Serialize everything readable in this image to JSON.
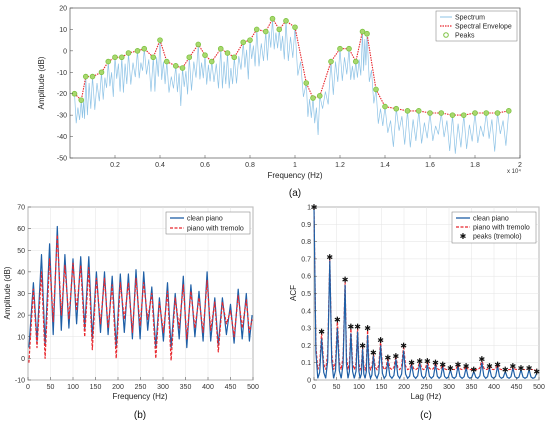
{
  "chart_data": [
    {
      "id": "a",
      "type": "line",
      "caption": "(a)",
      "xlabel": "Frequency (Hz)",
      "ylabel": "Amplitude (dB)",
      "x_exponent_label": "x 10⁴",
      "xlim": [
        0,
        2
      ],
      "ylim": [
        -50,
        20
      ],
      "xticks": [
        0.2,
        0.4,
        0.6,
        0.8,
        1,
        1.2,
        1.4,
        1.6,
        1.8,
        2
      ],
      "yticks": [
        -50,
        -40,
        -30,
        -20,
        -10,
        0,
        10,
        20
      ],
      "grid": false,
      "legend_position": "top-right",
      "legend": [
        "Spectrum",
        "Spectral Envelope",
        "Peaks"
      ],
      "colors": {
        "spectrum": "#8ec3e6",
        "envelope": "#e8262d",
        "peaks": "#7dc242"
      },
      "peaks": [
        [
          0.02,
          -20
        ],
        [
          0.05,
          -23
        ],
        [
          0.07,
          -12
        ],
        [
          0.1,
          -12
        ],
        [
          0.14,
          -10
        ],
        [
          0.17,
          -5
        ],
        [
          0.2,
          -3
        ],
        [
          0.23,
          -3
        ],
        [
          0.26,
          -1
        ],
        [
          0.3,
          0
        ],
        [
          0.33,
          1
        ],
        [
          0.37,
          -3
        ],
        [
          0.4,
          5
        ],
        [
          0.43,
          -5
        ],
        [
          0.47,
          -7
        ],
        [
          0.5,
          -8
        ],
        [
          0.53,
          -3
        ],
        [
          0.57,
          3
        ],
        [
          0.6,
          -2
        ],
        [
          0.63,
          -5
        ],
        [
          0.67,
          1
        ],
        [
          0.7,
          -1
        ],
        [
          0.73,
          -3
        ],
        [
          0.77,
          4
        ],
        [
          0.8,
          5
        ],
        [
          0.83,
          10
        ],
        [
          0.87,
          9
        ],
        [
          0.9,
          15
        ],
        [
          0.93,
          10
        ],
        [
          0.96,
          14
        ],
        [
          1.0,
          11
        ],
        [
          1.05,
          -15
        ],
        [
          1.08,
          -22
        ],
        [
          1.11,
          -21
        ],
        [
          1.16,
          -5
        ],
        [
          1.2,
          1
        ],
        [
          1.24,
          1
        ],
        [
          1.27,
          -5
        ],
        [
          1.3,
          9
        ],
        [
          1.32,
          8
        ],
        [
          1.36,
          -18
        ],
        [
          1.4,
          -26
        ],
        [
          1.45,
          -27
        ],
        [
          1.5,
          -28
        ],
        [
          1.55,
          -28
        ],
        [
          1.6,
          -29
        ],
        [
          1.65,
          -29
        ],
        [
          1.7,
          -30
        ],
        [
          1.75,
          -30
        ],
        [
          1.8,
          -29
        ],
        [
          1.85,
          -29
        ],
        [
          1.9,
          -29
        ],
        [
          1.95,
          -28
        ]
      ]
    },
    {
      "id": "b",
      "type": "line",
      "caption": "(b)",
      "xlabel": "Frequency (Hz)",
      "ylabel": "Amplitude (dB)",
      "xlim": [
        0,
        500
      ],
      "ylim": [
        -10,
        70
      ],
      "xticks": [
        0,
        50,
        100,
        150,
        200,
        250,
        300,
        350,
        400,
        450,
        500
      ],
      "yticks": [
        -10,
        0,
        10,
        20,
        30,
        40,
        50,
        60,
        70
      ],
      "grid": true,
      "legend_position": "top-right",
      "series": [
        {
          "name": "clean piano",
          "color": "#1f5fa6",
          "peaks": [
            [
              12,
              35
            ],
            [
              30,
              48
            ],
            [
              48,
              53
            ],
            [
              65,
              61
            ],
            [
              82,
              48
            ],
            [
              100,
              46
            ],
            [
              117,
              47
            ],
            [
              135,
              47
            ],
            [
              152,
              40
            ],
            [
              170,
              40
            ],
            [
              187,
              38
            ],
            [
              205,
              39
            ],
            [
              223,
              39
            ],
            [
              240,
              41
            ],
            [
              257,
              40
            ],
            [
              275,
              33
            ],
            [
              292,
              28
            ],
            [
              310,
              35
            ],
            [
              327,
              30
            ],
            [
              345,
              38
            ],
            [
              362,
              34
            ],
            [
              380,
              31
            ],
            [
              398,
              40
            ],
            [
              415,
              28
            ],
            [
              432,
              28
            ],
            [
              450,
              25
            ],
            [
              467,
              32
            ],
            [
              485,
              30
            ],
            [
              498,
              20
            ]
          ],
          "troughs": [
            [
              2,
              5
            ],
            [
              20,
              8
            ],
            [
              38,
              6
            ],
            [
              56,
              11
            ],
            [
              74,
              13
            ],
            [
              91,
              14
            ],
            [
              108,
              16
            ],
            [
              126,
              14
            ],
            [
              143,
              9
            ],
            [
              161,
              12
            ],
            [
              178,
              11
            ],
            [
              196,
              5
            ],
            [
              214,
              12
            ],
            [
              232,
              9
            ],
            [
              249,
              9
            ],
            [
              266,
              13
            ],
            [
              284,
              5
            ],
            [
              301,
              8
            ],
            [
              318,
              5
            ],
            [
              336,
              9
            ],
            [
              353,
              5
            ],
            [
              371,
              10
            ],
            [
              389,
              8
            ],
            [
              406,
              8
            ],
            [
              423,
              6
            ],
            [
              441,
              11
            ],
            [
              458,
              7
            ],
            [
              476,
              9
            ],
            [
              492,
              8
            ]
          ]
        },
        {
          "name": "piano with tremolo",
          "color": "#e8262d",
          "peaks": [
            [
              12,
              32
            ],
            [
              30,
              40
            ],
            [
              48,
              46
            ],
            [
              65,
              57
            ],
            [
              82,
              43
            ],
            [
              100,
              44
            ],
            [
              117,
              43
            ],
            [
              135,
              42
            ],
            [
              152,
              37
            ],
            [
              170,
              37
            ],
            [
              187,
              34
            ],
            [
              205,
              35
            ],
            [
              223,
              35
            ],
            [
              240,
              37
            ],
            [
              257,
              35
            ],
            [
              275,
              30
            ],
            [
              292,
              26
            ],
            [
              310,
              31
            ],
            [
              327,
              28
            ],
            [
              345,
              34
            ],
            [
              362,
              31
            ],
            [
              380,
              28
            ],
            [
              398,
              36
            ],
            [
              415,
              26
            ],
            [
              432,
              26
            ],
            [
              450,
              22
            ],
            [
              467,
              29
            ],
            [
              485,
              27
            ],
            [
              498,
              18
            ]
          ],
          "troughs": [
            [
              2,
              -2
            ],
            [
              20,
              5
            ],
            [
              38,
              0
            ],
            [
              56,
              17
            ],
            [
              74,
              20
            ],
            [
              91,
              18
            ],
            [
              108,
              22
            ],
            [
              126,
              10
            ],
            [
              143,
              4
            ],
            [
              161,
              16
            ],
            [
              178,
              14
            ],
            [
              196,
              0
            ],
            [
              214,
              18
            ],
            [
              232,
              12
            ],
            [
              249,
              15
            ],
            [
              266,
              18
            ],
            [
              284,
              0
            ],
            [
              301,
              12
            ],
            [
              318,
              -1
            ],
            [
              336,
              14
            ],
            [
              353,
              9
            ],
            [
              371,
              14
            ],
            [
              389,
              12
            ],
            [
              406,
              13
            ],
            [
              423,
              3
            ],
            [
              441,
              16
            ],
            [
              458,
              10
            ],
            [
              476,
              14
            ],
            [
              492,
              12
            ]
          ]
        }
      ]
    },
    {
      "id": "c",
      "type": "line",
      "caption": "(c)",
      "xlabel": "Lag (Hz)",
      "ylabel": "ACF",
      "xlim": [
        0,
        500
      ],
      "ylim": [
        0,
        1
      ],
      "xticks": [
        0,
        50,
        100,
        150,
        200,
        250,
        300,
        350,
        400,
        450,
        500
      ],
      "yticks": [
        0,
        0.1,
        0.2,
        0.3,
        0.4,
        0.5,
        0.6,
        0.7,
        0.8,
        0.9,
        1
      ],
      "grid": true,
      "legend_position": "top-right",
      "series": [
        {
          "name": "clean piano",
          "color": "#1f5fa6"
        },
        {
          "name": "piano with tremolo",
          "color": "#e8262d"
        },
        {
          "name": "peaks (tremolo)",
          "color": "#111111"
        }
      ],
      "peaks_tremolo": [
        [
          0,
          1.0
        ],
        [
          17,
          0.28
        ],
        [
          35,
          0.71
        ],
        [
          52,
          0.35
        ],
        [
          69,
          0.58
        ],
        [
          82,
          0.31
        ],
        [
          97,
          0.31
        ],
        [
          108,
          0.2
        ],
        [
          119,
          0.3
        ],
        [
          132,
          0.16
        ],
        [
          148,
          0.23
        ],
        [
          164,
          0.13
        ],
        [
          182,
          0.14
        ],
        [
          199,
          0.2
        ],
        [
          217,
          0.1
        ],
        [
          235,
          0.11
        ],
        [
          252,
          0.11
        ],
        [
          270,
          0.1
        ],
        [
          286,
          0.09
        ],
        [
          303,
          0.07
        ],
        [
          320,
          0.09
        ],
        [
          338,
          0.08
        ],
        [
          355,
          0.06
        ],
        [
          373,
          0.12
        ],
        [
          390,
          0.08
        ],
        [
          408,
          0.09
        ],
        [
          425,
          0.06
        ],
        [
          442,
          0.08
        ],
        [
          460,
          0.07
        ],
        [
          478,
          0.07
        ],
        [
          495,
          0.05
        ]
      ],
      "clean_peaks": [
        [
          0,
          1.0
        ],
        [
          17,
          0.24
        ],
        [
          35,
          0.69
        ],
        [
          52,
          0.3
        ],
        [
          69,
          0.55
        ],
        [
          82,
          0.27
        ],
        [
          97,
          0.28
        ],
        [
          108,
          0.18
        ],
        [
          119,
          0.26
        ],
        [
          132,
          0.14
        ],
        [
          148,
          0.2
        ],
        [
          164,
          0.11
        ],
        [
          182,
          0.12
        ],
        [
          199,
          0.17
        ],
        [
          217,
          0.09
        ],
        [
          235,
          0.1
        ],
        [
          252,
          0.09
        ],
        [
          270,
          0.09
        ],
        [
          286,
          0.08
        ],
        [
          303,
          0.06
        ],
        [
          320,
          0.08
        ],
        [
          338,
          0.07
        ],
        [
          355,
          0.05
        ],
        [
          373,
          0.1
        ],
        [
          390,
          0.07
        ],
        [
          408,
          0.08
        ],
        [
          425,
          0.05
        ],
        [
          442,
          0.07
        ],
        [
          460,
          0.06
        ],
        [
          478,
          0.06
        ],
        [
          495,
          0.04
        ]
      ]
    }
  ]
}
